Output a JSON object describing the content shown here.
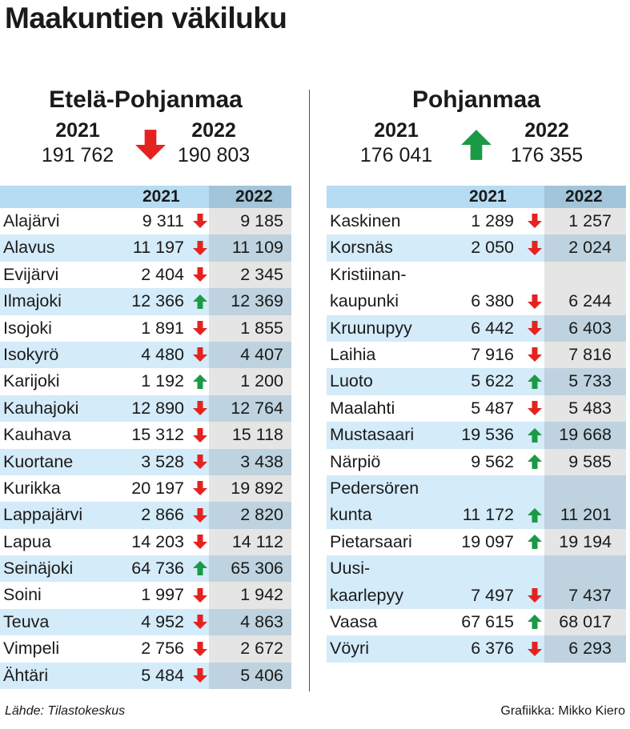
{
  "title": "Maakuntien väkiluku",
  "footer": {
    "source": "Lähde: Tilastokeskus",
    "credit": "Grafiikka: Mikko Kiero"
  },
  "colors": {
    "down": "#e42320",
    "up": "#1b9a45",
    "header": "#b5dcf3",
    "stripe": "#d4ebf9"
  },
  "chart_data": [
    {
      "type": "table",
      "title": "Etelä-Pohjanmaa",
      "summary": {
        "year_a": "2021",
        "year_b": "2022",
        "value_a": "191 762",
        "value_b": "190 803",
        "trend": "down"
      },
      "columns": [
        "",
        "2021",
        "2022"
      ],
      "rows": [
        {
          "name": "Alajärvi",
          "v2021": "9 311",
          "v2022": "9 185",
          "trend": "down"
        },
        {
          "name": "Alavus",
          "v2021": "11 197",
          "v2022": "11 109",
          "trend": "down"
        },
        {
          "name": "Evijärvi",
          "v2021": "2 404",
          "v2022": "2 345",
          "trend": "down"
        },
        {
          "name": "Ilmajoki",
          "v2021": "12 366",
          "v2022": "12 369",
          "trend": "up"
        },
        {
          "name": "Isojoki",
          "v2021": "1 891",
          "v2022": "1 855",
          "trend": "down"
        },
        {
          "name": "Isokyrö",
          "v2021": "4 480",
          "v2022": "4 407",
          "trend": "down"
        },
        {
          "name": "Karijoki",
          "v2021": "1 192",
          "v2022": "1 200",
          "trend": "up"
        },
        {
          "name": "Kauhajoki",
          "v2021": "12 890",
          "v2022": "12 764",
          "trend": "down"
        },
        {
          "name": "Kauhava",
          "v2021": "15 312",
          "v2022": "15 118",
          "trend": "down"
        },
        {
          "name": "Kuortane",
          "v2021": "3 528",
          "v2022": "3 438",
          "trend": "down"
        },
        {
          "name": "Kurikka",
          "v2021": "20 197",
          "v2022": "19 892",
          "trend": "down"
        },
        {
          "name": "Lappajärvi",
          "v2021": "2 866",
          "v2022": "2 820",
          "trend": "down"
        },
        {
          "name": "Lapua",
          "v2021": "14 203",
          "v2022": "14 112",
          "trend": "down"
        },
        {
          "name": "Seinäjoki",
          "v2021": "64 736",
          "v2022": "65 306",
          "trend": "up"
        },
        {
          "name": "Soini",
          "v2021": "1 997",
          "v2022": "1 942",
          "trend": "down"
        },
        {
          "name": "Teuva",
          "v2021": "4 952",
          "v2022": "4 863",
          "trend": "down"
        },
        {
          "name": "Vimpeli",
          "v2021": "2 756",
          "v2022": "2 672",
          "trend": "down"
        },
        {
          "name": "Ähtäri",
          "v2021": "5 484",
          "v2022": "5 406",
          "trend": "down"
        }
      ]
    },
    {
      "type": "table",
      "title": "Pohjanmaa",
      "summary": {
        "year_a": "2021",
        "year_b": "2022",
        "value_a": "176 041",
        "value_b": "176 355",
        "trend": "up"
      },
      "columns": [
        "",
        "2021",
        "2022"
      ],
      "rows": [
        {
          "name": "Kaskinen",
          "v2021": "1 289",
          "v2022": "1 257",
          "trend": "down"
        },
        {
          "name": "Korsnäs",
          "v2021": "2 050",
          "v2022": "2 024",
          "trend": "down"
        },
        {
          "name": "Kristiinan-",
          "name2": "kaupunki",
          "v2021": "6 380",
          "v2022": "6 244",
          "trend": "down"
        },
        {
          "name": "Kruunupyy",
          "v2021": "6 442",
          "v2022": "6 403",
          "trend": "down"
        },
        {
          "name": "Laihia",
          "v2021": "7 916",
          "v2022": "7 816",
          "trend": "down"
        },
        {
          "name": "Luoto",
          "v2021": "5 622",
          "v2022": "5 733",
          "trend": "up"
        },
        {
          "name": "Maalahti",
          "v2021": "5 487",
          "v2022": "5 483",
          "trend": "down"
        },
        {
          "name": "Mustasaari",
          "v2021": "19 536",
          "v2022": "19 668",
          "trend": "up"
        },
        {
          "name": "Närpiö",
          "v2021": "9 562",
          "v2022": "9 585",
          "trend": "up"
        },
        {
          "name": "Pedersören",
          "name2": "kunta",
          "v2021": "11 172",
          "v2022": "11 201",
          "trend": "up"
        },
        {
          "name": "Pietarsaari",
          "v2021": "19 097",
          "v2022": "19 194",
          "trend": "up"
        },
        {
          "name": "Uusi-",
          "name2": "kaarlepyy",
          "v2021": "7 497",
          "v2022": "7 437",
          "trend": "down"
        },
        {
          "name": "Vaasa",
          "v2021": "67 615",
          "v2022": "68 017",
          "trend": "up"
        },
        {
          "name": "Vöyri",
          "v2021": "6 376",
          "v2022": "6 293",
          "trend": "down"
        }
      ]
    }
  ]
}
